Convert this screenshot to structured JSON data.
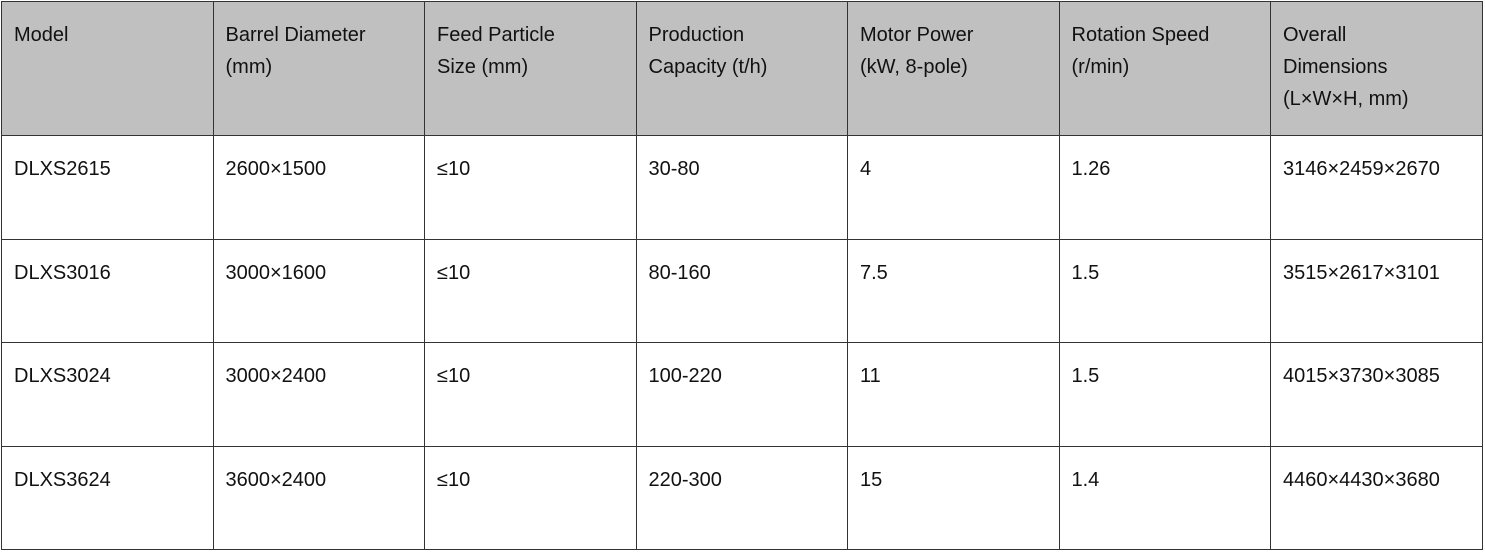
{
  "table": {
    "header": [
      "Model",
      "Barrel Diameter\n(mm)",
      "Feed Particle\nSize (mm)",
      "Production\nCapacity (t/h)",
      "Motor Power\n(kW, 8-pole)",
      "Rotation Speed\n(r/min)",
      "Overall\nDimensions\n(L×W×H, mm)"
    ],
    "rows": [
      [
        "DLXS2615",
        "2600×1500",
        "≤10",
        "30-80",
        "4",
        "1.26",
        "3146×2459×2670"
      ],
      [
        "DLXS3016",
        "3000×1600",
        "≤10",
        "80-160",
        "7.5",
        "1.5",
        "3515×2617×3101"
      ],
      [
        "DLXS3024",
        "3000×2400",
        "≤10",
        "100-220",
        "11",
        "1.5",
        "4015×3730×3085"
      ],
      [
        "DLXS3624",
        "3600×2400",
        "≤10",
        "220-300",
        "15",
        "1.4",
        "4460×4430×3680"
      ]
    ]
  }
}
